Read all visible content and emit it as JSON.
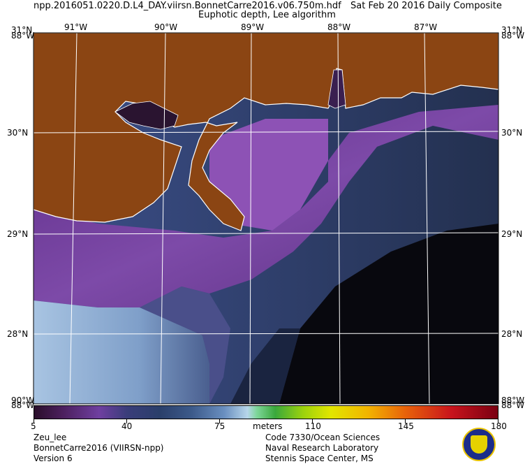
{
  "header": {
    "filename": "npp.2016051.0220.D.L4_DAY.viirsn.BonnetCarre2016.v06.750m.hdf",
    "date": "Sat Feb 20 2016 Daily Composite",
    "product": "Euphotic depth, Lee algorithm"
  },
  "map": {
    "lon_labels": [
      "91°W",
      "90°W",
      "89°W",
      "88°W",
      "87°W"
    ],
    "lat_labels": [
      "30°N",
      "29°N",
      "28°N"
    ],
    "corner_labels": {
      "top_left_lat": "31°N",
      "top_left_lon": "88°W",
      "top_right_lat": "31°N",
      "top_right_lon": "88°W",
      "bottom_left_lat": "90°W",
      "bottom_left_lon": "88°W",
      "bottom_right_lat": "88°W",
      "bottom_right_lon": "88°W"
    },
    "colors": {
      "land": "#8b4513",
      "coastline": "#ffffff",
      "gridlines": "#ffffff",
      "deep_water": "#0a0a12"
    }
  },
  "colorbar": {
    "tick_labels": [
      "5",
      "40",
      "75",
      "110",
      "145",
      "180"
    ],
    "units": "meters",
    "min": 5,
    "max": 180
  },
  "footer": {
    "left_line1": "Zeu_lee",
    "left_line2": "BonnetCarre2016 (VIIRSN-npp)",
    "left_line3": "Version 6",
    "right_line1": "Code 7330/Ocean Sciences",
    "right_line2": "Naval Research Laboratory",
    "right_line3": "Stennis Space Center, MS"
  },
  "logo": {
    "name": "nrl-seal-icon"
  }
}
